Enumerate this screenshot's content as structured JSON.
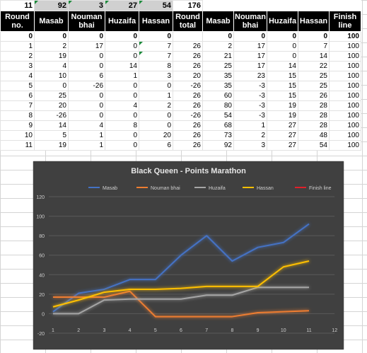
{
  "spreadsheet": {
    "top_row": [
      "11",
      "92",
      "3",
      "27",
      "54",
      "176"
    ],
    "headers": [
      "Round no.",
      "Masab",
      "Nouman bhai",
      "Huzaifa",
      "Hassan",
      "Round total",
      "Masab",
      "Nouman bhai",
      "Huzaifa",
      "Hassan",
      "Finish line"
    ],
    "rows": [
      [
        "0",
        "0",
        "0",
        "0",
        "0",
        "",
        "0",
        "0",
        "0",
        "0",
        "100"
      ],
      [
        "1",
        "2",
        "17",
        "0",
        "7",
        "26",
        "2",
        "17",
        "0",
        "7",
        "100"
      ],
      [
        "2",
        "19",
        "0",
        "0",
        "7",
        "26",
        "21",
        "17",
        "0",
        "14",
        "100"
      ],
      [
        "3",
        "4",
        "0",
        "14",
        "8",
        "26",
        "25",
        "17",
        "14",
        "22",
        "100"
      ],
      [
        "4",
        "10",
        "6",
        "1",
        "3",
        "20",
        "35",
        "23",
        "15",
        "25",
        "100"
      ],
      [
        "5",
        "0",
        "-26",
        "0",
        "0",
        "-26",
        "35",
        "-3",
        "15",
        "25",
        "100"
      ],
      [
        "6",
        "25",
        "0",
        "0",
        "1",
        "26",
        "60",
        "-3",
        "15",
        "26",
        "100"
      ],
      [
        "7",
        "20",
        "0",
        "4",
        "2",
        "26",
        "80",
        "-3",
        "19",
        "28",
        "100"
      ],
      [
        "8",
        "-26",
        "0",
        "0",
        "0",
        "-26",
        "54",
        "-3",
        "19",
        "28",
        "100"
      ],
      [
        "9",
        "14",
        "4",
        "8",
        "0",
        "26",
        "68",
        "1",
        "27",
        "28",
        "100"
      ],
      [
        "10",
        "5",
        "1",
        "0",
        "20",
        "26",
        "73",
        "2",
        "27",
        "48",
        "100"
      ],
      [
        "11",
        "19",
        "1",
        "0",
        "6",
        "26",
        "92",
        "3",
        "27",
        "54",
        "100"
      ]
    ]
  },
  "chart_data": {
    "type": "line",
    "title": "Black Queen - Points Marathon",
    "x": [
      1,
      2,
      3,
      4,
      5,
      6,
      7,
      8,
      9,
      10,
      11
    ],
    "x_ticks": [
      1,
      2,
      3,
      4,
      5,
      6,
      7,
      8,
      9,
      10,
      11,
      12
    ],
    "ylim": [
      -20,
      120
    ],
    "y_ticks": [
      -20,
      0,
      20,
      40,
      60,
      80,
      100,
      120
    ],
    "grid": true,
    "legend": "top",
    "series": [
      {
        "name": "Masab",
        "color": "#4472c4",
        "values": [
          2,
          21,
          25,
          35,
          35,
          60,
          80,
          54,
          68,
          73,
          92
        ]
      },
      {
        "name": "Nouman bhai",
        "color": "#ed7d31",
        "values": [
          17,
          17,
          17,
          23,
          -3,
          -3,
          -3,
          -3,
          1,
          2,
          3
        ]
      },
      {
        "name": "Huzaifa",
        "color": "#a5a5a5",
        "values": [
          0,
          0,
          14,
          15,
          15,
          15,
          19,
          19,
          27,
          27,
          27
        ]
      },
      {
        "name": "Hassan",
        "color": "#ffc000",
        "values": [
          7,
          14,
          22,
          25,
          25,
          26,
          28,
          28,
          28,
          48,
          54
        ]
      },
      {
        "name": "Finish line",
        "color": "#e0202a",
        "values": [
          100,
          100,
          100,
          100,
          100,
          100,
          100,
          100,
          100,
          100,
          100
        ]
      }
    ]
  }
}
